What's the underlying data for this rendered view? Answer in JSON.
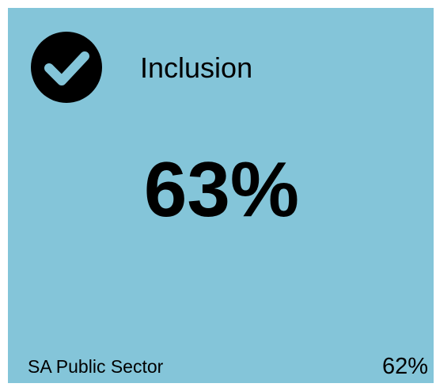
{
  "card": {
    "title": "Inclusion",
    "value": "63%",
    "benchmark": {
      "label": "SA Public Sector",
      "value": "62%"
    }
  }
}
